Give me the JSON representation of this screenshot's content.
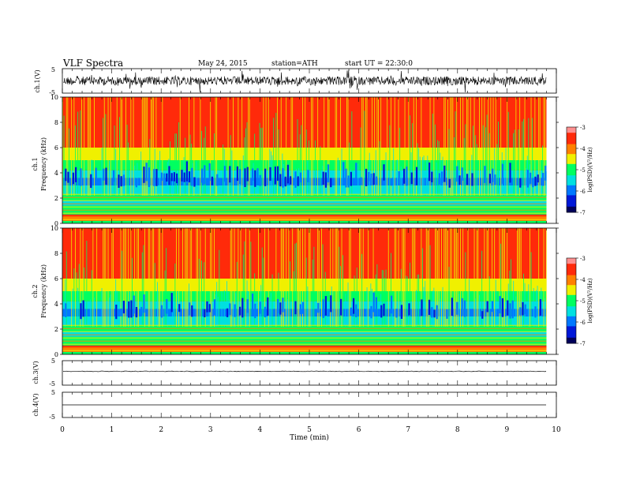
{
  "header": {
    "title": "VLF  Spectra",
    "date": "May 24,  2015",
    "station": "station=ATH",
    "start": "start  UT  =   22:30:0"
  },
  "chart_data": [
    {
      "type": "line",
      "ylabel": "ch.1(V)",
      "ylim": [
        -5,
        5
      ],
      "yticks": [
        "5",
        "-5"
      ],
      "description_level": "noisy waveform, amplitude roughly ±1.5 V"
    },
    {
      "type": "heatmap",
      "ylabel_channel": "ch.1",
      "ylabel": "Frequency  (kHz)",
      "ylim": [
        0,
        10
      ],
      "yticks": [
        "0",
        "2",
        "4",
        "6",
        "8",
        "10"
      ],
      "colorbar": {
        "label": "log(PSD)(V²/Hz)",
        "range": [
          -7,
          -3
        ],
        "ticks": [
          "-3",
          "-4",
          "-5",
          "-6",
          "-7"
        ]
      }
    },
    {
      "type": "heatmap",
      "ylabel_channel": "ch.2",
      "ylabel": "Frequency  (kHz)",
      "ylim": [
        0,
        10
      ],
      "yticks": [
        "0",
        "2",
        "4",
        "6",
        "8",
        "10"
      ],
      "colorbar": {
        "label": "log(PSD)(V²/Hz)",
        "range": [
          -7,
          -3
        ],
        "ticks": [
          "-3",
          "-4",
          "-5",
          "-6",
          "-7"
        ]
      }
    },
    {
      "type": "line",
      "ylabel": "ch.3(V)",
      "ylim": [
        -5,
        5
      ],
      "yticks": [
        "5",
        "-5"
      ]
    },
    {
      "type": "line",
      "ylabel": "ch.4(V)",
      "ylim": [
        -5,
        5
      ],
      "yticks": [
        "5",
        "-5"
      ]
    }
  ],
  "xaxis": {
    "label": "Time  (min)",
    "xlim": [
      0,
      10
    ],
    "ticks": [
      "0",
      "1",
      "2",
      "3",
      "4",
      "5",
      "6",
      "7",
      "8",
      "9",
      "10"
    ],
    "data_end_min": 9.8
  },
  "colors": {
    "colormap": [
      "#00005a",
      "#0018d8",
      "#0078ff",
      "#00e0e0",
      "#00ff60",
      "#f0f000",
      "#ff8000",
      "#ff2a0a",
      "#ff9090"
    ],
    "trace": "#000000"
  }
}
